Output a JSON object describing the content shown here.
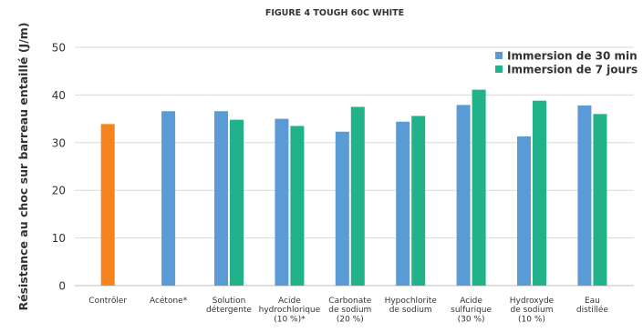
{
  "chart_data": {
    "type": "bar",
    "title": "FIGURE 4 TOUGH 60C WHITE",
    "ylabel": "Résistance au choc sur barreau entaillé (J/m)",
    "xlabel": "",
    "ylim": [
      0,
      50
    ],
    "yticks": [
      0,
      10,
      20,
      30,
      40,
      50
    ],
    "grid": true,
    "legend_position": "top-right",
    "categories": [
      [
        "Contrôler"
      ],
      [
        "Acétone*"
      ],
      [
        "Solution",
        "détergente"
      ],
      [
        "Acide",
        "hydrochlorique",
        "(10 %)*"
      ],
      [
        "Carbonate",
        "de sodium",
        "(20 %)"
      ],
      [
        "Hypochlorite",
        "de sodium"
      ],
      [
        "Acide",
        "sulfurique",
        "(30 %)"
      ],
      [
        "Hydroxyde",
        "de sodium",
        "(10 %)"
      ],
      [
        "Eau",
        "distillée"
      ]
    ],
    "series": [
      {
        "name": "Immersion de 30 min",
        "color": "#5B9BD5",
        "values": [
          null,
          36.6,
          36.6,
          35.0,
          32.3,
          34.4,
          37.9,
          31.3,
          37.8
        ]
      },
      {
        "name": "Immersion de 7 jours",
        "color": "#22B28A",
        "values": [
          null,
          null,
          34.8,
          33.5,
          37.5,
          35.6,
          41.1,
          38.8,
          36.0
        ]
      }
    ],
    "control": {
      "category_index": 0,
      "value": 33.9,
      "color": "#F5841F"
    }
  }
}
